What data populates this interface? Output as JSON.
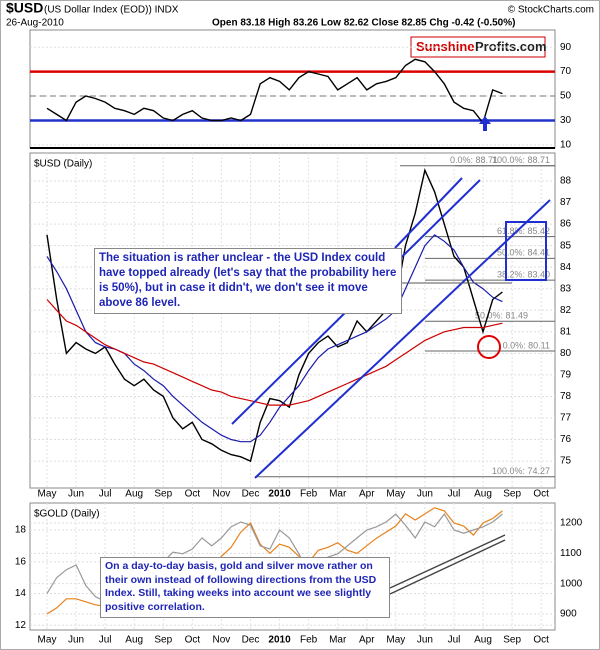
{
  "header": {
    "symbol": "$USD",
    "title": "(US Dollar Index (EOD)) INDX",
    "date": "26-Aug-2010",
    "stats": "Open 83.18  High 83.26  Low 82.62  Close 82.85  Chg -0.42 (-0.50%)",
    "copyright": "© StockCharts.com",
    "logo_red": "Sunshine",
    "logo_dark": "Profits.com"
  },
  "chart_data": [
    {
      "type": "line",
      "series": [
        {
          "color": "#000000",
          "values": [
            40,
            35,
            30,
            45,
            50,
            48,
            45,
            40,
            38,
            35,
            40,
            38,
            32,
            30,
            35,
            38,
            32,
            30,
            30,
            32,
            30,
            35,
            60,
            65,
            62,
            55,
            65,
            70,
            68,
            66,
            55,
            60,
            65,
            55,
            60,
            62,
            65,
            75,
            80,
            78,
            70,
            60,
            45,
            40,
            38,
            28,
            55,
            52,
            null,
            null,
            null,
            null,
            null,
            null
          ]
        }
      ],
      "ylim": [
        7.5,
        104
      ],
      "yticks": [
        10,
        30,
        50,
        70,
        90
      ],
      "reference_lines": [
        {
          "value": 70,
          "color": "#dd0000"
        },
        {
          "value": 50,
          "color": "#777777",
          "dashed": true
        },
        {
          "value": 30,
          "color": "#2233cc"
        }
      ]
    },
    {
      "type": "line",
      "title": "$USD (Daily)",
      "categories": [
        "May",
        null,
        null,
        "Jun",
        null,
        null,
        "Jul",
        null,
        null,
        "Aug",
        null,
        null,
        "Sep",
        null,
        null,
        "Oct",
        null,
        null,
        "Nov",
        null,
        null,
        "Dec",
        null,
        null,
        "2010",
        null,
        null,
        "Feb",
        null,
        null,
        "Mar",
        null,
        null,
        "Apr",
        null,
        null,
        "May",
        null,
        null,
        "Jun",
        null,
        null,
        "Jul",
        null,
        null,
        "Aug",
        null,
        null,
        "Sep",
        null,
        null,
        "Oct",
        null,
        null
      ],
      "series": [
        {
          "color": "#000000",
          "values": [
            85.5,
            82.5,
            80.0,
            80.5,
            80.2,
            80.0,
            80.3,
            79.5,
            78.8,
            78.5,
            78.8,
            78.3,
            78.0,
            77.0,
            76.5,
            76.8,
            76.0,
            75.8,
            75.5,
            75.3,
            75.2,
            75.0,
            76.8,
            77.9,
            77.8,
            77.5,
            79.0,
            80.0,
            80.5,
            80.8,
            80.3,
            80.5,
            81.5,
            81.0,
            81.5,
            82.0,
            82.5,
            85.0,
            86.5,
            88.5,
            87.5,
            86.0,
            84.5,
            84.0,
            82.5,
            81.0,
            82.5,
            82.85,
            null,
            null,
            null,
            null,
            null,
            null
          ]
        },
        {
          "color": "#1a1aaa",
          "values": [
            84.5,
            83.8,
            83.0,
            82.0,
            81.0,
            80.5,
            80.3,
            80.2,
            80.0,
            79.5,
            79.2,
            78.8,
            78.5,
            78.0,
            77.6,
            77.2,
            76.8,
            76.5,
            76.2,
            76.0,
            75.9,
            75.9,
            76.2,
            76.8,
            77.5,
            78.0,
            78.5,
            79.2,
            79.8,
            80.2,
            80.4,
            80.6,
            80.8,
            81.0,
            81.3,
            81.6,
            82.0,
            83.0,
            84.0,
            85.0,
            85.5,
            85.2,
            84.8,
            84.0,
            83.3,
            83.0,
            82.6,
            82.4,
            null,
            null,
            null,
            null,
            null,
            null
          ]
        },
        {
          "color": "#cc0000",
          "values": [
            82.5,
            82.0,
            81.5,
            81.3,
            81.0,
            80.7,
            80.4,
            80.2,
            80.0,
            79.8,
            79.6,
            79.5,
            79.3,
            79.1,
            78.9,
            78.7,
            78.5,
            78.3,
            78.2,
            78.0,
            77.9,
            77.8,
            77.7,
            77.6,
            77.6,
            77.6,
            77.7,
            77.8,
            78.0,
            78.2,
            78.4,
            78.6,
            78.8,
            79.0,
            79.2,
            79.4,
            79.7,
            80.0,
            80.3,
            80.6,
            80.8,
            81.0,
            81.1,
            81.2,
            81.2,
            81.2,
            81.3,
            81.4,
            null,
            null,
            null,
            null,
            null,
            null
          ]
        }
      ],
      "ylim": [
        73.75,
        89.3
      ],
      "yticks": [
        75,
        76,
        77,
        78,
        79,
        80,
        81,
        82,
        83,
        84,
        85,
        86,
        87,
        88
      ],
      "fibonacci": [
        {
          "label": "0.0%: 88.71",
          "level": 88.71
        },
        {
          "label": "100.0%: 88.71",
          "level": 88.71
        },
        {
          "label": "61.8%: 85.42",
          "level": 85.42
        },
        {
          "label": "50.0%: 84.41",
          "level": 84.41
        },
        {
          "label": "38.2%: 83.40",
          "level": 83.4
        },
        {
          "label": "50.0%: 81.49",
          "level": 81.49
        },
        {
          "label": "0.0%: 80.11",
          "level": 80.11
        },
        {
          "label": "100.0%: 74.27",
          "level": 74.27
        }
      ],
      "annotation": "The situation is rather unclear - the USD Index could have topped already (let's say that the probability here is 50%), but in case it didn't, we don't see it move above 86 level."
    },
    {
      "type": "line",
      "title": "$GOLD (Daily)",
      "categories": [
        "May",
        null,
        null,
        "Jun",
        null,
        null,
        "Jul",
        null,
        null,
        "Aug",
        null,
        null,
        "Sep",
        null,
        null,
        "Oct",
        null,
        null,
        "Nov",
        null,
        null,
        "Dec",
        null,
        null,
        "2010",
        null,
        null,
        "Feb",
        null,
        null,
        "Mar",
        null,
        null,
        "Apr",
        null,
        null,
        "May",
        null,
        null,
        "Jun",
        null,
        null,
        "Jul",
        null,
        null,
        "Aug",
        null,
        null,
        "Sep",
        null,
        null,
        "Oct",
        null,
        null
      ],
      "series": [
        {
          "color": "#e8801a",
          "axis": "y2",
          "values": [
            900,
            920,
            950,
            950,
            940,
            930,
            925,
            935,
            950,
            955,
            950,
            945,
            995,
            1000,
            1005,
            1040,
            1050,
            1045,
            1090,
            1120,
            1170,
            1200,
            1130,
            1100,
            1130,
            1120,
            1090,
            1070,
            1110,
            1120,
            1135,
            1110,
            1100,
            1125,
            1150,
            1170,
            1190,
            1230,
            1210,
            1230,
            1250,
            1240,
            1200,
            1190,
            1160,
            1200,
            1215,
            1240,
            null,
            null,
            null,
            null,
            null,
            null
          ]
        },
        {
          "color": "#999999",
          "values": [
            14,
            15,
            15.5,
            15.8,
            14.5,
            13.8,
            13.5,
            13.2,
            13.8,
            14.2,
            14.5,
            14.8,
            16,
            16.6,
            16.5,
            16.8,
            17.5,
            17,
            17.5,
            18.2,
            18.5,
            18.3,
            17,
            16.8,
            18,
            17.5,
            16.5,
            15.3,
            15.8,
            16.3,
            16.5,
            17,
            17.5,
            18,
            18.2,
            18.5,
            19,
            18.3,
            17.5,
            18.5,
            18.2,
            19,
            18,
            17.8,
            18,
            18.2,
            18.5,
            19,
            null,
            null,
            null,
            null,
            null,
            null
          ]
        }
      ],
      "ylim": [
        11.7,
        19.7
      ],
      "yticks": [
        12,
        14,
        16,
        18
      ],
      "y2lim": [
        847,
        1266
      ],
      "y2ticks": [
        900,
        1000,
        1100,
        1200
      ],
      "annotation": "On a day-to-day basis, gold and silver move rather on their own instead of following directions from the USD Index. Still, taking weeks into account we see slightly positive correlation."
    }
  ]
}
